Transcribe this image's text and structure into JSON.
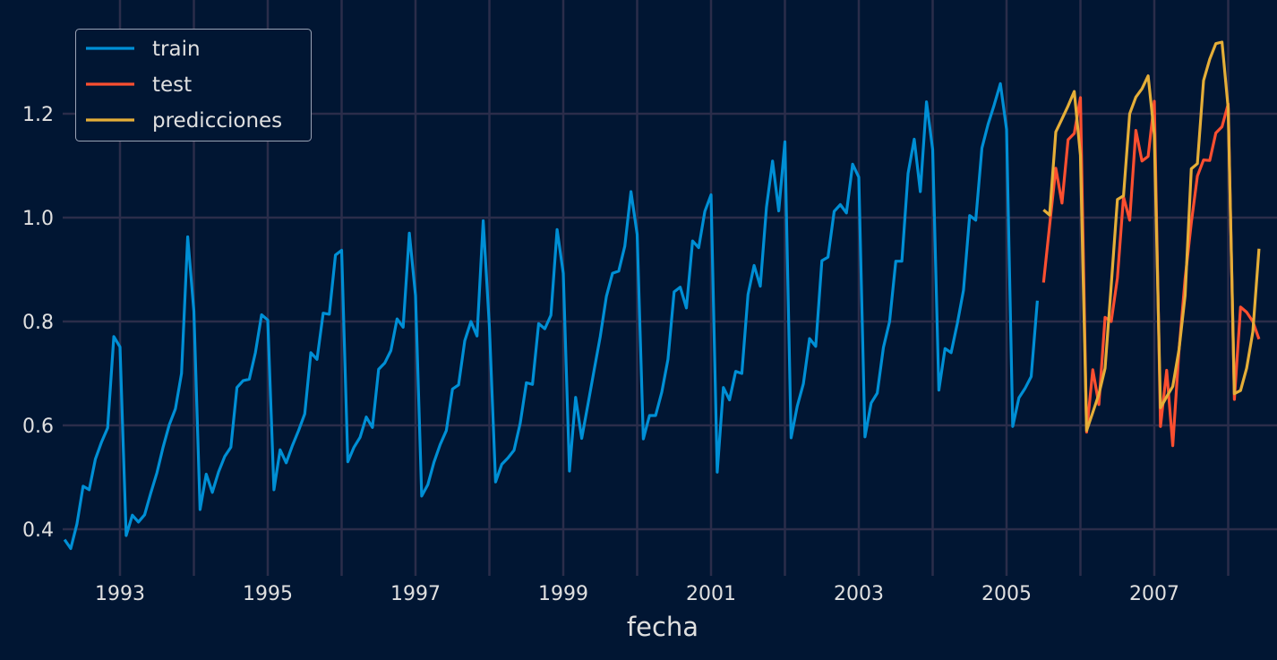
{
  "chart_data": {
    "type": "line",
    "title": "",
    "xlabel": "fecha",
    "ylabel": "",
    "xlim": [
      "1992-04",
      "2008-06"
    ],
    "ylim": [
      0.32,
      1.42
    ],
    "grid": true,
    "legend_position": "top-left",
    "yticks": [
      0.4,
      0.6,
      0.8,
      1.0,
      1.2
    ],
    "ytick_labels": [
      "0.4",
      "0.6",
      "0.8",
      "1.0",
      "1.2"
    ],
    "xticks": [
      1993,
      1995,
      1997,
      1999,
      2001,
      2003,
      2005,
      2007
    ],
    "xtick_labels": [
      "1993",
      "1995",
      "1997",
      "1999",
      "2001",
      "2003",
      "2005",
      "2007"
    ],
    "series": [
      {
        "name": "train",
        "color": "#008fd5",
        "start": "1992-04",
        "values": [
          0.38,
          0.363,
          0.41,
          0.483,
          0.476,
          0.535,
          0.568,
          0.595,
          0.771,
          0.751,
          0.388,
          0.427,
          0.414,
          0.428,
          0.47,
          0.509,
          0.558,
          0.601,
          0.632,
          0.7,
          0.963,
          0.82,
          0.438,
          0.506,
          0.471,
          0.51,
          0.54,
          0.558,
          0.673,
          0.686,
          0.689,
          0.74,
          0.813,
          0.803,
          0.476,
          0.553,
          0.528,
          0.561,
          0.59,
          0.622,
          0.74,
          0.727,
          0.816,
          0.814,
          0.928,
          0.937,
          0.53,
          0.558,
          0.577,
          0.616,
          0.596,
          0.708,
          0.72,
          0.744,
          0.805,
          0.789,
          0.97,
          0.85,
          0.464,
          0.486,
          0.529,
          0.563,
          0.59,
          0.67,
          0.678,
          0.763,
          0.8,
          0.772,
          0.994,
          0.79,
          0.491,
          0.525,
          0.537,
          0.552,
          0.604,
          0.682,
          0.679,
          0.796,
          0.786,
          0.812,
          0.977,
          0.893,
          0.512,
          0.654,
          0.575,
          0.64,
          0.706,
          0.771,
          0.848,
          0.893,
          0.897,
          0.945,
          1.05,
          0.968,
          0.574,
          0.619,
          0.619,
          0.664,
          0.727,
          0.857,
          0.866,
          0.826,
          0.955,
          0.942,
          1.012,
          1.044,
          0.51,
          0.673,
          0.649,
          0.704,
          0.7,
          0.852,
          0.908,
          0.868,
          1.02,
          1.109,
          1.013,
          1.146,
          0.576,
          0.637,
          0.68,
          0.767,
          0.752,
          0.917,
          0.924,
          1.012,
          1.025,
          1.009,
          1.103,
          1.078,
          0.578,
          0.643,
          0.662,
          0.75,
          0.8,
          0.916,
          0.916,
          1.085,
          1.151,
          1.05,
          1.223,
          1.131,
          0.668,
          0.748,
          0.74,
          0.796,
          0.86,
          1.004,
          0.995,
          1.134,
          1.18,
          1.217,
          1.258,
          1.17,
          0.598,
          0.653,
          0.671,
          0.694,
          0.84
        ]
      },
      {
        "name": "test",
        "color": "#fc4f30",
        "start": "2005-07",
        "values": [
          0.875,
          0.985,
          1.095,
          1.028,
          1.15,
          1.162,
          1.231,
          0.587,
          0.707,
          0.64,
          0.808,
          0.8,
          0.884,
          1.04,
          0.995,
          1.168,
          1.109,
          1.118,
          1.224,
          0.598,
          0.706,
          0.561,
          0.743,
          0.883,
          0.99,
          1.08,
          1.111,
          1.11,
          1.163,
          1.175,
          1.219,
          0.65,
          0.828,
          0.818,
          0.8,
          0.766
        ]
      },
      {
        "name": "predicciones",
        "color": "#e5ae38",
        "start": "2005-07",
        "values": [
          1.015,
          1.005,
          1.165,
          1.19,
          1.215,
          1.243,
          1.12,
          0.59,
          0.625,
          0.66,
          0.71,
          0.87,
          1.035,
          1.042,
          1.2,
          1.232,
          1.248,
          1.273,
          1.16,
          0.634,
          0.655,
          0.675,
          0.745,
          0.85,
          1.094,
          1.104,
          1.264,
          1.305,
          1.335,
          1.338,
          1.21,
          0.661,
          0.667,
          0.71,
          0.78,
          0.94
        ]
      }
    ]
  }
}
